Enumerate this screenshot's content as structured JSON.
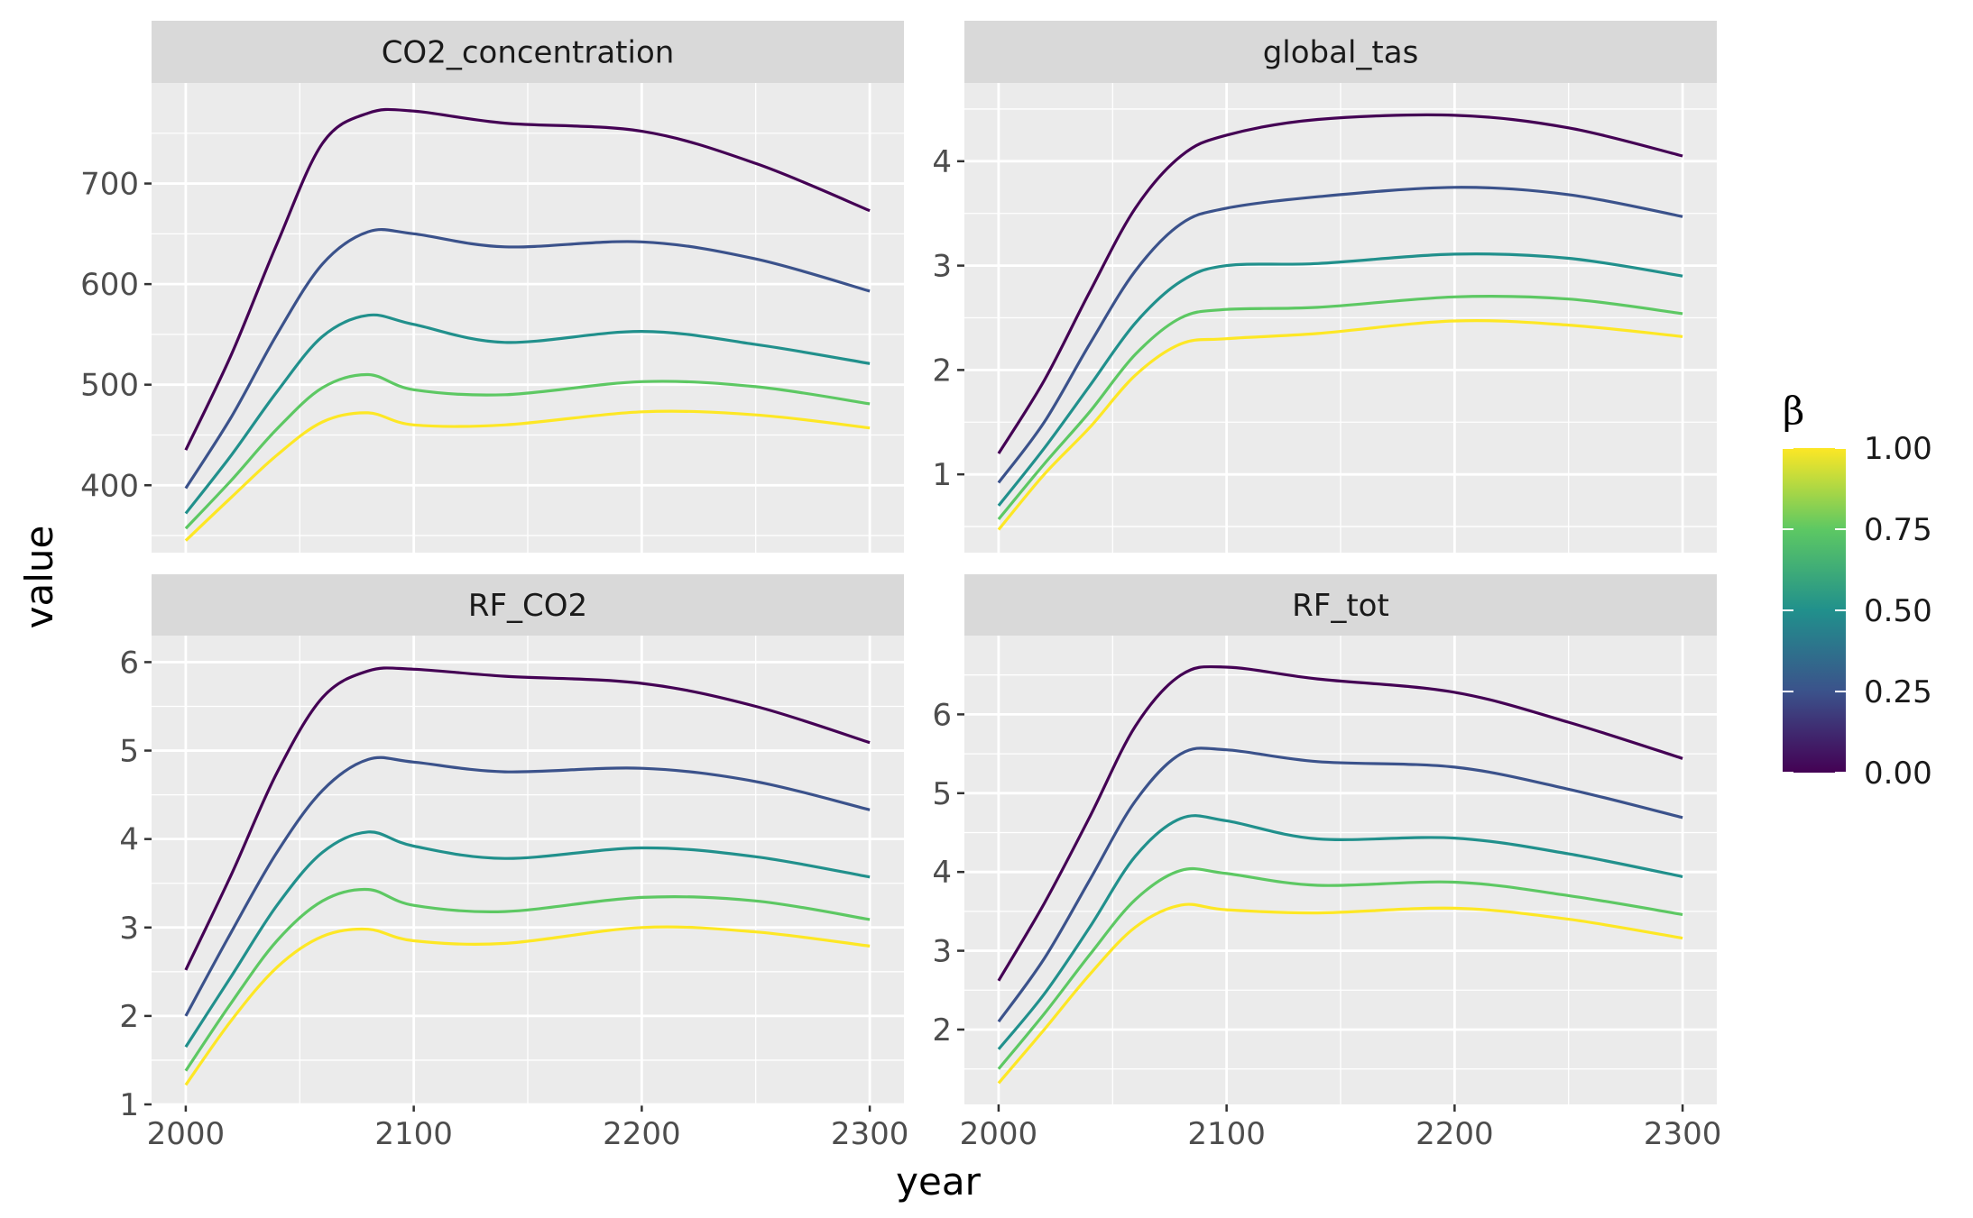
{
  "chart_data": {
    "type": "line",
    "layout": "facet_wrap 2x2",
    "xlabel": "year",
    "ylabel": "value",
    "x_ticks": [
      2000,
      2100,
      2200,
      2300
    ],
    "grid": true,
    "legend": {
      "title": "β",
      "type": "colorbar",
      "placement": "right",
      "ticks": [
        "0.00",
        "0.25",
        "0.50",
        "0.75",
        "1.00"
      ],
      "colormap": [
        "#440154",
        "#3b528b",
        "#21908c",
        "#5dc863",
        "#fde725"
      ]
    },
    "x": [
      2000,
      2020,
      2040,
      2060,
      2080,
      2100,
      2140,
      2200,
      2250,
      2300
    ],
    "facets": [
      {
        "name": "CO2_concentration",
        "xlim": [
          1985,
          2315
        ],
        "ylim": [
          333,
          800
        ],
        "y_ticks": [
          400,
          500,
          600,
          700
        ],
        "series": [
          {
            "beta": 0.0,
            "color": "#440154",
            "values": [
              435,
              530,
              640,
              740,
              770,
              772,
              760,
              752,
              720,
              673
            ]
          },
          {
            "beta": 0.25,
            "color": "#3b528b",
            "values": [
              397,
              468,
              550,
              620,
              652,
              650,
              637,
              642,
              625,
              593
            ]
          },
          {
            "beta": 0.5,
            "color": "#21908c",
            "values": [
              372,
              430,
              493,
              548,
              569,
              560,
              542,
              553,
              540,
              521
            ]
          },
          {
            "beta": 0.75,
            "color": "#5dc863",
            "values": [
              357,
              405,
              456,
              497,
              510,
              495,
              490,
              503,
              498,
              481
            ]
          },
          {
            "beta": 1.0,
            "color": "#fde725",
            "values": [
              345,
              388,
              430,
              463,
              472,
              460,
              460,
              473,
              470,
              457
            ]
          }
        ]
      },
      {
        "name": "global_tas",
        "xlim": [
          1985,
          2315
        ],
        "ylim": [
          0.25,
          4.75
        ],
        "y_ticks": [
          1,
          2,
          3,
          4
        ],
        "series": [
          {
            "beta": 0.0,
            "color": "#440154",
            "values": [
              1.2,
              1.9,
              2.75,
              3.55,
              4.05,
              4.25,
              4.4,
              4.44,
              4.32,
              4.05
            ]
          },
          {
            "beta": 0.25,
            "color": "#3b528b",
            "values": [
              0.92,
              1.5,
              2.25,
              2.95,
              3.4,
              3.55,
              3.66,
              3.75,
              3.68,
              3.47
            ]
          },
          {
            "beta": 0.5,
            "color": "#21908c",
            "values": [
              0.7,
              1.25,
              1.85,
              2.45,
              2.85,
              3.0,
              3.02,
              3.11,
              3.07,
              2.9
            ]
          },
          {
            "beta": 0.75,
            "color": "#5dc863",
            "values": [
              0.57,
              1.1,
              1.6,
              2.15,
              2.5,
              2.58,
              2.6,
              2.7,
              2.68,
              2.54
            ]
          },
          {
            "beta": 1.0,
            "color": "#fde725",
            "values": [
              0.47,
              1.0,
              1.45,
              1.95,
              2.25,
              2.3,
              2.35,
              2.47,
              2.43,
              2.32
            ]
          }
        ]
      },
      {
        "name": "RF_CO2",
        "xlim": [
          1985,
          2315
        ],
        "ylim": [
          1,
          6.3
        ],
        "y_ticks": [
          1,
          2,
          3,
          4,
          5,
          6
        ],
        "series": [
          {
            "beta": 0.0,
            "color": "#440154",
            "values": [
              2.52,
              3.6,
              4.75,
              5.6,
              5.9,
              5.92,
              5.84,
              5.76,
              5.5,
              5.09
            ]
          },
          {
            "beta": 0.25,
            "color": "#3b528b",
            "values": [
              2.0,
              2.95,
              3.85,
              4.55,
              4.9,
              4.87,
              4.76,
              4.8,
              4.65,
              4.33
            ]
          },
          {
            "beta": 0.5,
            "color": "#21908c",
            "values": [
              1.65,
              2.45,
              3.25,
              3.85,
              4.08,
              3.92,
              3.78,
              3.9,
              3.8,
              3.57
            ]
          },
          {
            "beta": 0.75,
            "color": "#5dc863",
            "values": [
              1.38,
              2.15,
              2.85,
              3.3,
              3.43,
              3.25,
              3.18,
              3.34,
              3.3,
              3.09
            ]
          },
          {
            "beta": 1.0,
            "color": "#fde725",
            "values": [
              1.22,
              1.95,
              2.55,
              2.9,
              2.98,
              2.85,
              2.82,
              3.0,
              2.95,
              2.79
            ]
          }
        ]
      },
      {
        "name": "RF_tot",
        "xlim": [
          1985,
          2315
        ],
        "ylim": [
          1.05,
          7.0
        ],
        "y_ticks": [
          2,
          3,
          4,
          5,
          6
        ],
        "series": [
          {
            "beta": 0.0,
            "color": "#440154",
            "values": [
              2.62,
              3.6,
              4.7,
              5.85,
              6.5,
              6.6,
              6.45,
              6.28,
              5.9,
              5.44
            ]
          },
          {
            "beta": 0.25,
            "color": "#3b528b",
            "values": [
              2.1,
              2.9,
              3.9,
              4.9,
              5.5,
              5.55,
              5.4,
              5.33,
              5.05,
              4.69
            ]
          },
          {
            "beta": 0.5,
            "color": "#21908c",
            "values": [
              1.75,
              2.45,
              3.3,
              4.2,
              4.68,
              4.65,
              4.42,
              4.43,
              4.23,
              3.94
            ]
          },
          {
            "beta": 0.75,
            "color": "#5dc863",
            "values": [
              1.5,
              2.2,
              2.95,
              3.65,
              4.02,
              3.98,
              3.83,
              3.87,
              3.7,
              3.46
            ]
          },
          {
            "beta": 1.0,
            "color": "#fde725",
            "values": [
              1.32,
              2.0,
              2.7,
              3.3,
              3.58,
              3.52,
              3.48,
              3.54,
              3.4,
              3.16
            ]
          }
        ]
      }
    ]
  }
}
